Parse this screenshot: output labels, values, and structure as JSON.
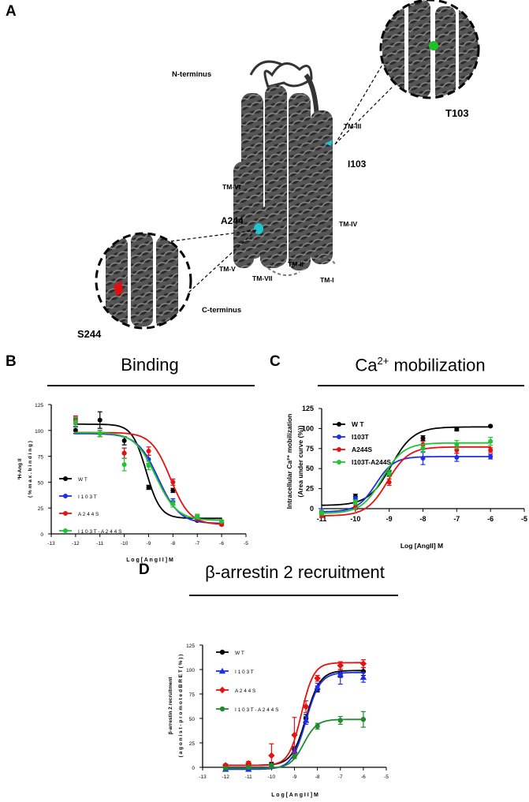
{
  "panel_a": {
    "letter": "A",
    "labels": {
      "n_terminus": "N-terminus",
      "c_terminus": "C-terminus",
      "tm3": "TM-III",
      "tm6": "TM-VI",
      "tm4": "TM-IV",
      "tm5": "TM-V",
      "tm7": "TM-VII",
      "tm2": "TM-II",
      "tm1": "TM-I",
      "i103": "I103",
      "a244": "A244",
      "t103": "T103",
      "s244": "S244"
    },
    "colors": {
      "ribbon": "#4a4a4a",
      "cyan": "#1fc4cf",
      "green": "#1fc02a",
      "red": "#e01010"
    }
  },
  "chart_data": [
    {
      "id": "B",
      "type": "line",
      "letter": "B",
      "title": "Binding",
      "xlabel": "L o g  [ A n g I I ]  M",
      "ylabel_line1": "³H-Ang II",
      "ylabel_line2": "( %  m a x . b i n d i n g )",
      "xlim": [
        -13,
        -5
      ],
      "ylim": [
        0,
        125
      ],
      "xticks": [
        -13,
        -12,
        -11,
        -10,
        -9,
        -8,
        -7,
        -6,
        -5
      ],
      "yticks": [
        0,
        25,
        50,
        75,
        100,
        125
      ],
      "legend_position": "left",
      "series": [
        {
          "name": "W T",
          "color": "#000000",
          "marker": "circle",
          "x": [
            -12,
            -11,
            -10,
            -9,
            -8,
            -7,
            -6
          ],
          "y": [
            100,
            110,
            90,
            45,
            42,
            13,
            12
          ],
          "err": [
            3,
            8,
            4,
            2,
            2,
            1,
            1
          ],
          "fit": {
            "top": 106,
            "bottom": 15,
            "logec50": -9.1,
            "hill": 1.5
          }
        },
        {
          "name": "I 1 0 3 T",
          "color": "#1f2ee8",
          "marker": "circle",
          "x": [
            -12,
            -11,
            -10,
            -9,
            -8,
            -7,
            -6
          ],
          "y": [
            108,
            97,
            78,
            72,
            31,
            16,
            10
          ],
          "err": [
            4,
            3,
            5,
            4,
            3,
            2,
            1
          ],
          "fit": {
            "top": 97,
            "bottom": 10,
            "logec50": -8.6,
            "hill": 1.0
          }
        },
        {
          "name": "A 2 4 4 S",
          "color": "#e81010",
          "marker": "circle",
          "x": [
            -12,
            -11,
            -10,
            -9,
            -8,
            -7,
            -6
          ],
          "y": [
            110,
            97,
            78,
            80,
            50,
            15,
            9
          ],
          "err": [
            4,
            3,
            5,
            4,
            3,
            2,
            1
          ],
          "fit": {
            "top": 98,
            "bottom": 9,
            "logec50": -8.1,
            "hill": 1.1
          }
        },
        {
          "name": "I 1 0 3 T - A 2 4 4 S",
          "color": "#22c434",
          "marker": "circle",
          "x": [
            -12,
            -11,
            -10,
            -9,
            -8,
            -7,
            -6
          ],
          "y": [
            108,
            97,
            67,
            66,
            29,
            17,
            12
          ],
          "err": [
            5,
            3,
            6,
            4,
            3,
            2,
            1
          ],
          "fit": {
            "top": 98,
            "bottom": 13,
            "logec50": -8.7,
            "hill": 1.0
          }
        }
      ]
    },
    {
      "id": "C",
      "type": "line",
      "letter": "C",
      "title_main": "Ca",
      "title_sup": "2+",
      "title_rest": " mobilization",
      "xlabel": "Log [AngII] M",
      "ylabel_line1": "Intracellular Ca²⁺ mobilization",
      "ylabel_line2": "(Area under curve (%))",
      "xlim": [
        -11,
        -5
      ],
      "ylim": [
        0,
        125
      ],
      "xticks": [
        -11,
        -10,
        -9,
        -8,
        -7,
        -6,
        -5
      ],
      "yticks": [
        0,
        25,
        50,
        75,
        100,
        125
      ],
      "legend_position": "top-left",
      "series": [
        {
          "name": "W T",
          "color": "#000000",
          "marker": "circle",
          "x": [
            -11,
            -10,
            -9,
            -8,
            -7,
            -6
          ],
          "y": [
            -4,
            15,
            44,
            88,
            99,
            103
          ],
          "err": [
            2,
            3,
            3,
            3,
            2,
            1
          ],
          "fit": {
            "top": 102,
            "bottom": 4,
            "logec50": -8.95,
            "hill": 1.3
          }
        },
        {
          "name": "I103T",
          "color": "#1f2ee8",
          "marker": "circle",
          "x": [
            -11,
            -10,
            -9,
            -8,
            -7,
            -6
          ],
          "y": [
            -4,
            12,
            44,
            63,
            64,
            65
          ],
          "err": [
            4,
            3,
            4,
            8,
            5,
            3
          ],
          "fit": {
            "top": 65,
            "bottom": -4,
            "logec50": -9.4,
            "hill": 1.6
          }
        },
        {
          "name": "A244S",
          "color": "#e81010",
          "marker": "circle",
          "x": [
            -11,
            -10,
            -9,
            -8,
            -7,
            -6
          ],
          "y": [
            -8,
            2,
            33,
            80,
            73,
            73
          ],
          "err": [
            3,
            3,
            4,
            4,
            4,
            3
          ],
          "fit": {
            "top": 77,
            "bottom": -9,
            "logec50": -9.05,
            "hill": 1.4
          }
        },
        {
          "name": "I103T-A244S",
          "color": "#22c434",
          "marker": "circle",
          "x": [
            -11,
            -10,
            -9,
            -8,
            -7,
            -6
          ],
          "y": [
            -5,
            8,
            44,
            75,
            80,
            84
          ],
          "err": [
            3,
            3,
            4,
            5,
            5,
            5
          ],
          "fit": {
            "top": 82,
            "bottom": -6,
            "logec50": -9.2,
            "hill": 1.4
          }
        }
      ]
    },
    {
      "id": "D",
      "type": "line",
      "letter": "D",
      "title": "β-arrestin 2 recruitment",
      "xlabel": "L o g  [ A n g I I ] M",
      "ylabel_line1": "β-arrestin 2 recruitment",
      "ylabel_line2": "( a g o n i s t - p r o m o t e d  B R E T  ( % ) )",
      "xlim": [
        -13,
        -5
      ],
      "ylim": [
        0,
        125
      ],
      "xticks": [
        -13,
        -12,
        -11,
        -10,
        -9,
        -8,
        -7,
        -6,
        -5
      ],
      "yticks": [
        0,
        25,
        50,
        75,
        100,
        125
      ],
      "legend_position": "top-left",
      "series": [
        {
          "name": "W T",
          "color": "#000000",
          "marker": "circle",
          "x": [
            -12,
            -11,
            -10,
            -9,
            -8.5,
            -8,
            -7,
            -6
          ],
          "y": [
            2,
            3,
            3,
            18,
            50,
            80,
            96,
            98
          ],
          "err": [
            1,
            1,
            2,
            3,
            4,
            3,
            4,
            4
          ],
          "fit": {
            "top": 99,
            "bottom": 2,
            "logec50": -8.5,
            "hill": 1.4
          }
        },
        {
          "name": "I 1 0 3 T",
          "color": "#1f2ee8",
          "marker": "triangle",
          "x": [
            -12,
            -11,
            -10,
            -9,
            -8.5,
            -8,
            -7,
            -6
          ],
          "y": [
            -2,
            -2,
            1,
            17,
            48,
            82,
            95,
            92
          ],
          "err": [
            2,
            2,
            2,
            3,
            4,
            4,
            10,
            5
          ],
          "fit": {
            "top": 97,
            "bottom": -2,
            "logec50": -8.5,
            "hill": 1.4
          }
        },
        {
          "name": "A 2 4 4 S",
          "color": "#e81010",
          "marker": "diamond",
          "x": [
            -12,
            -11,
            -10,
            -9,
            -8.5,
            -8,
            -7,
            -6
          ],
          "y": [
            2,
            4,
            12,
            33,
            62,
            91,
            104,
            106
          ],
          "err": [
            1,
            2,
            12,
            18,
            6,
            3,
            4,
            4
          ],
          "fit": {
            "top": 107,
            "bottom": 2,
            "logec50": -8.7,
            "hill": 1.6
          }
        },
        {
          "name": "I 1 0 3 T - A 2 4 4 S",
          "color": "#1f8a2e",
          "marker": "circle",
          "x": [
            -12,
            -11,
            -10,
            -9,
            -8,
            -7,
            -6
          ],
          "y": [
            -1,
            0,
            2,
            11,
            42,
            48,
            49
          ],
          "err": [
            1,
            1,
            1,
            2,
            3,
            4,
            8
          ],
          "fit": {
            "top": 49,
            "bottom": -1,
            "logec50": -8.6,
            "hill": 1.5
          }
        }
      ]
    }
  ]
}
